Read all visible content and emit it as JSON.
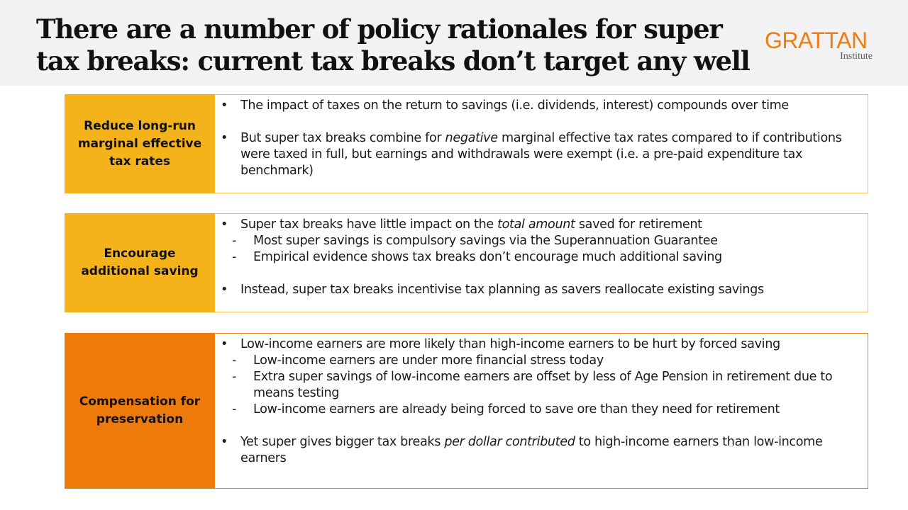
{
  "header": {
    "title": "There are a number of policy rationales for super tax breaks: current tax breaks don’t target any well",
    "logo": {
      "main": "GRATTAN",
      "sub": "Institute"
    }
  },
  "colors": {
    "header_bg": "#f2f2f2",
    "label_yellow": "#f4b31a",
    "label_orange": "#ee7a0b",
    "logo_orange": "#f07d12"
  },
  "rows": [
    {
      "label": "Reduce long-run marginal effective tax rates",
      "bullet_mark": "•",
      "points": [
        {
          "text": "The impact of taxes on the return to savings (i.e. dividends, interest) compounds over time"
        },
        {
          "pre": "But super tax breaks combine for ",
          "em": "negative",
          "post": " marginal effective tax rates compared to if contributions were taxed in full, but earnings and withdrawals were exempt (i.e. a pre-paid expenditure tax benchmark)"
        }
      ]
    },
    {
      "label": "Encourage additional saving",
      "points": [
        {
          "pre": "Super tax breaks have little impact on the ",
          "em": "total amount",
          "post": " saved for retirement",
          "subs": [
            "Most super savings is compulsory savings via the Superannuation Guarantee",
            "Empirical evidence shows tax breaks don’t encourage much additional saving"
          ]
        },
        {
          "text": "Instead, super tax breaks incentivise tax planning as savers reallocate existing savings"
        }
      ]
    },
    {
      "label": "Compensation for preservation",
      "points": [
        {
          "text": "Low-income earners are more likely than high-income earners to be hurt by forced saving",
          "subs": [
            "Low-income earners are under more financial stress today",
            "Extra super savings of low-income earners are offset by less of Age Pension in retirement due to means testing",
            "Low-income earners are already being forced to save ore than they need for retirement"
          ]
        },
        {
          "pre": "Yet super gives bigger tax breaks ",
          "em": "per dollar contributed",
          "post": " to high-income earners than low-income earners"
        }
      ]
    }
  ],
  "marks": {
    "bullet": "•",
    "dash": "-"
  }
}
